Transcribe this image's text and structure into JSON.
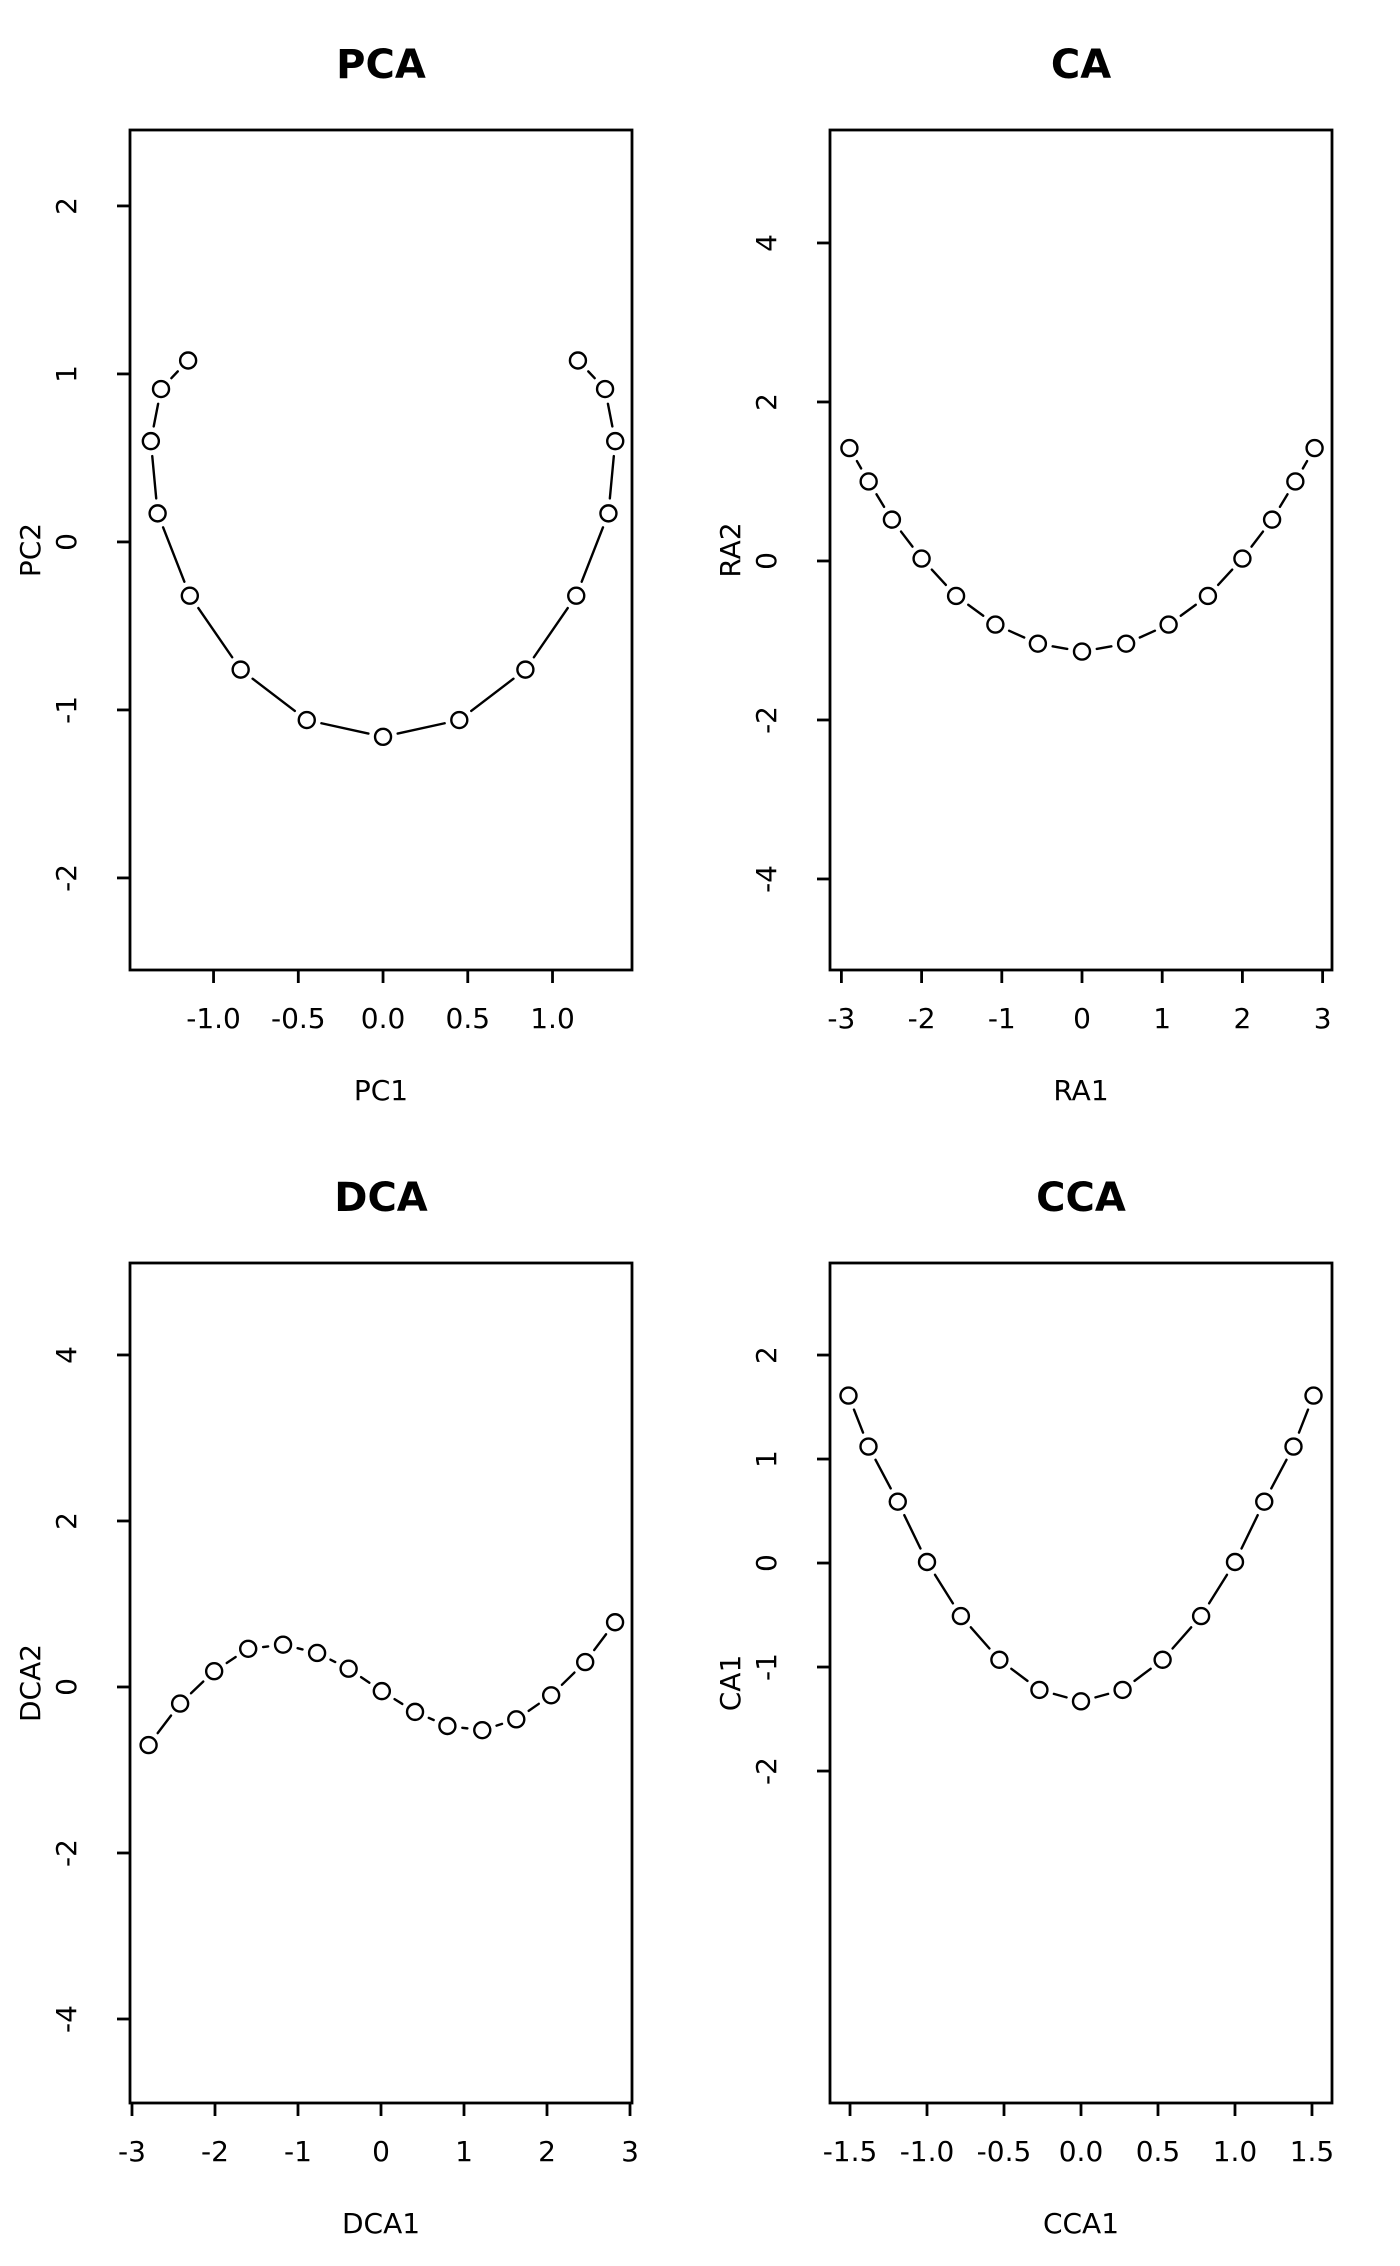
{
  "figure": {
    "background": "#ffffff",
    "stroke_color": "#000000",
    "marker": "open-circle",
    "line_type": "points-connected-with-gaps"
  },
  "chart_data": [
    {
      "type": "line",
      "title": "PCA",
      "xlabel": "PC1",
      "ylabel": "PC2",
      "xlim": [
        -1.493,
        1.469
      ],
      "ylim": [
        -2.548,
        2.452
      ],
      "grid": false,
      "legend": "none",
      "xticks": [
        {
          "v": -1.0,
          "label": "-1.0"
        },
        {
          "v": -0.5,
          "label": "-0.5"
        },
        {
          "v": 0.0,
          "label": "0.0"
        },
        {
          "v": 0.5,
          "label": "0.5"
        },
        {
          "v": 1.0,
          "label": "1.0"
        }
      ],
      "yticks": [
        {
          "v": -2,
          "label": "-2"
        },
        {
          "v": -1,
          "label": "-1"
        },
        {
          "v": 0,
          "label": "0"
        },
        {
          "v": 1,
          "label": "1"
        },
        {
          "v": 2,
          "label": "2"
        }
      ],
      "x": [
        -1.15,
        -1.31,
        -1.37,
        -1.33,
        -1.14,
        -0.84,
        -0.45,
        0.0,
        0.45,
        0.84,
        1.14,
        1.33,
        1.37,
        1.31,
        1.15
      ],
      "y": [
        1.08,
        0.91,
        0.6,
        0.17,
        -0.32,
        -0.76,
        -1.06,
        -1.16,
        -1.06,
        -0.76,
        -0.32,
        0.17,
        0.6,
        0.91,
        1.08
      ]
    },
    {
      "type": "line",
      "title": "CA",
      "xlabel": "RA1",
      "ylabel": "RA2",
      "xlim": [
        -3.142,
        3.117
      ],
      "ylim": [
        -5.145,
        5.421
      ],
      "grid": false,
      "legend": "none",
      "xticks": [
        {
          "v": -3,
          "label": "-3"
        },
        {
          "v": -2,
          "label": "-2"
        },
        {
          "v": -1,
          "label": "-1"
        },
        {
          "v": 0,
          "label": "0"
        },
        {
          "v": 1,
          "label": "1"
        },
        {
          "v": 2,
          "label": "2"
        },
        {
          "v": 3,
          "label": "3"
        }
      ],
      "yticks": [
        {
          "v": -4,
          "label": "-4"
        },
        {
          "v": -2,
          "label": "-2"
        },
        {
          "v": 0,
          "label": "0"
        },
        {
          "v": 2,
          "label": "2"
        },
        {
          "v": 4,
          "label": "4"
        }
      ],
      "x": [
        -2.9,
        -2.66,
        -2.37,
        -2.0,
        -1.57,
        -1.08,
        -0.55,
        0.0,
        0.55,
        1.08,
        1.57,
        2.0,
        2.37,
        2.66,
        2.9
      ],
      "y": [
        1.42,
        1.0,
        0.52,
        0.03,
        -0.44,
        -0.8,
        -1.04,
        -1.14,
        -1.04,
        -0.8,
        -0.44,
        0.03,
        0.52,
        1.0,
        1.42
      ]
    },
    {
      "type": "line",
      "title": "DCA",
      "xlabel": "DCA1",
      "ylabel": "DCA2",
      "xlim": [
        -3.024,
        3.024
      ],
      "ylim": [
        -5.012,
        5.108
      ],
      "grid": false,
      "legend": "none",
      "xticks": [
        {
          "v": -3,
          "label": "-3"
        },
        {
          "v": -2,
          "label": "-2"
        },
        {
          "v": -1,
          "label": "-1"
        },
        {
          "v": 0,
          "label": "0"
        },
        {
          "v": 1,
          "label": "1"
        },
        {
          "v": 2,
          "label": "2"
        },
        {
          "v": 3,
          "label": "3"
        }
      ],
      "yticks": [
        {
          "v": -4,
          "label": "-4"
        },
        {
          "v": -2,
          "label": "-2"
        },
        {
          "v": 0,
          "label": "0"
        },
        {
          "v": 2,
          "label": "2"
        },
        {
          "v": 4,
          "label": "4"
        }
      ],
      "x": [
        -2.8,
        -2.42,
        -2.01,
        -1.6,
        -1.18,
        -0.77,
        -0.39,
        0.01,
        0.41,
        0.8,
        1.22,
        1.63,
        2.05,
        2.46,
        2.82
      ],
      "y": [
        -0.7,
        -0.2,
        0.19,
        0.46,
        0.51,
        0.41,
        0.22,
        -0.05,
        -0.3,
        -0.47,
        -0.52,
        -0.39,
        -0.1,
        0.3,
        0.78
      ]
    },
    {
      "type": "line",
      "title": "CCA",
      "xlabel": "CCA1",
      "ylabel": "CA1",
      "xlim": [
        -1.63,
        1.63
      ],
      "ylim": [
        -5.192,
        2.885
      ],
      "grid": false,
      "legend": "none",
      "xticks": [
        {
          "v": -1.5,
          "label": "-1.5"
        },
        {
          "v": -1.0,
          "label": "-1.0"
        },
        {
          "v": -0.5,
          "label": "-0.5"
        },
        {
          "v": 0.0,
          "label": "0.0"
        },
        {
          "v": 0.5,
          "label": "0.5"
        },
        {
          "v": 1.0,
          "label": "1.0"
        },
        {
          "v": 1.5,
          "label": "1.5"
        }
      ],
      "yticks": [
        {
          "v": -2,
          "label": "-2"
        },
        {
          "v": -1,
          "label": "-1"
        },
        {
          "v": 0,
          "label": "0"
        },
        {
          "v": 1,
          "label": "1"
        },
        {
          "v": 2,
          "label": "2"
        }
      ],
      "x": [
        -1.51,
        -1.38,
        -1.19,
        -1.0,
        -0.78,
        -0.53,
        -0.27,
        0.0,
        0.27,
        0.53,
        0.78,
        1.0,
        1.19,
        1.38,
        1.51
      ],
      "y": [
        1.61,
        1.12,
        0.59,
        0.01,
        -0.51,
        -0.93,
        -1.22,
        -1.33,
        -1.22,
        -0.93,
        -0.51,
        0.01,
        0.59,
        1.12,
        1.61
      ]
    }
  ]
}
